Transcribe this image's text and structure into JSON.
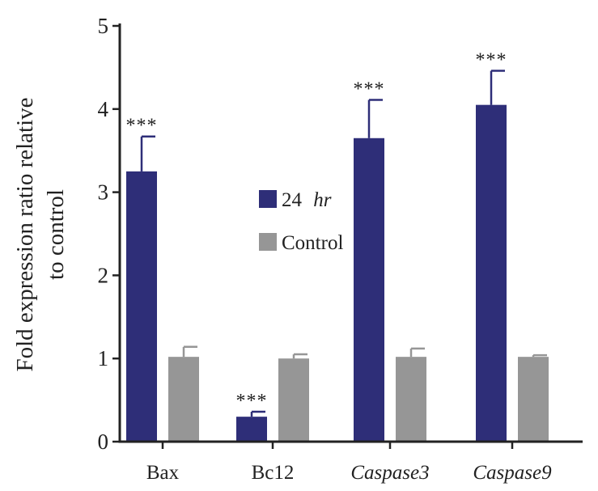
{
  "chart_data": {
    "type": "bar",
    "title": "",
    "xlabel": "",
    "ylabel_lines": [
      "Fold expression ratio relative",
      "to control"
    ],
    "ylim": [
      0,
      5
    ],
    "yticks": [
      0,
      1,
      2,
      3,
      4,
      5
    ],
    "ytick_labels": [
      "0",
      "1",
      "2",
      "3",
      "4",
      "5"
    ],
    "categories": [
      "Bax",
      "Bc12",
      "Caspase3",
      "Caspase9"
    ],
    "category_italic": [
      false,
      false,
      true,
      true
    ],
    "series": [
      {
        "name": "24 hr",
        "name_main": "24",
        "name_italic": "hr",
        "color": "#2e2e78",
        "values": [
          3.25,
          0.3,
          3.65,
          4.05
        ],
        "errors": [
          0.42,
          0.06,
          0.46,
          0.41
        ],
        "annotations": [
          "***",
          "***",
          "***",
          "***"
        ]
      },
      {
        "name": "Control",
        "color": "#969696",
        "values": [
          1.02,
          1.0,
          1.02,
          1.02
        ],
        "errors": [
          0.12,
          0.05,
          0.1,
          0.02
        ],
        "annotations": [
          "",
          "",
          "",
          ""
        ]
      }
    ],
    "legend_position": "center"
  }
}
